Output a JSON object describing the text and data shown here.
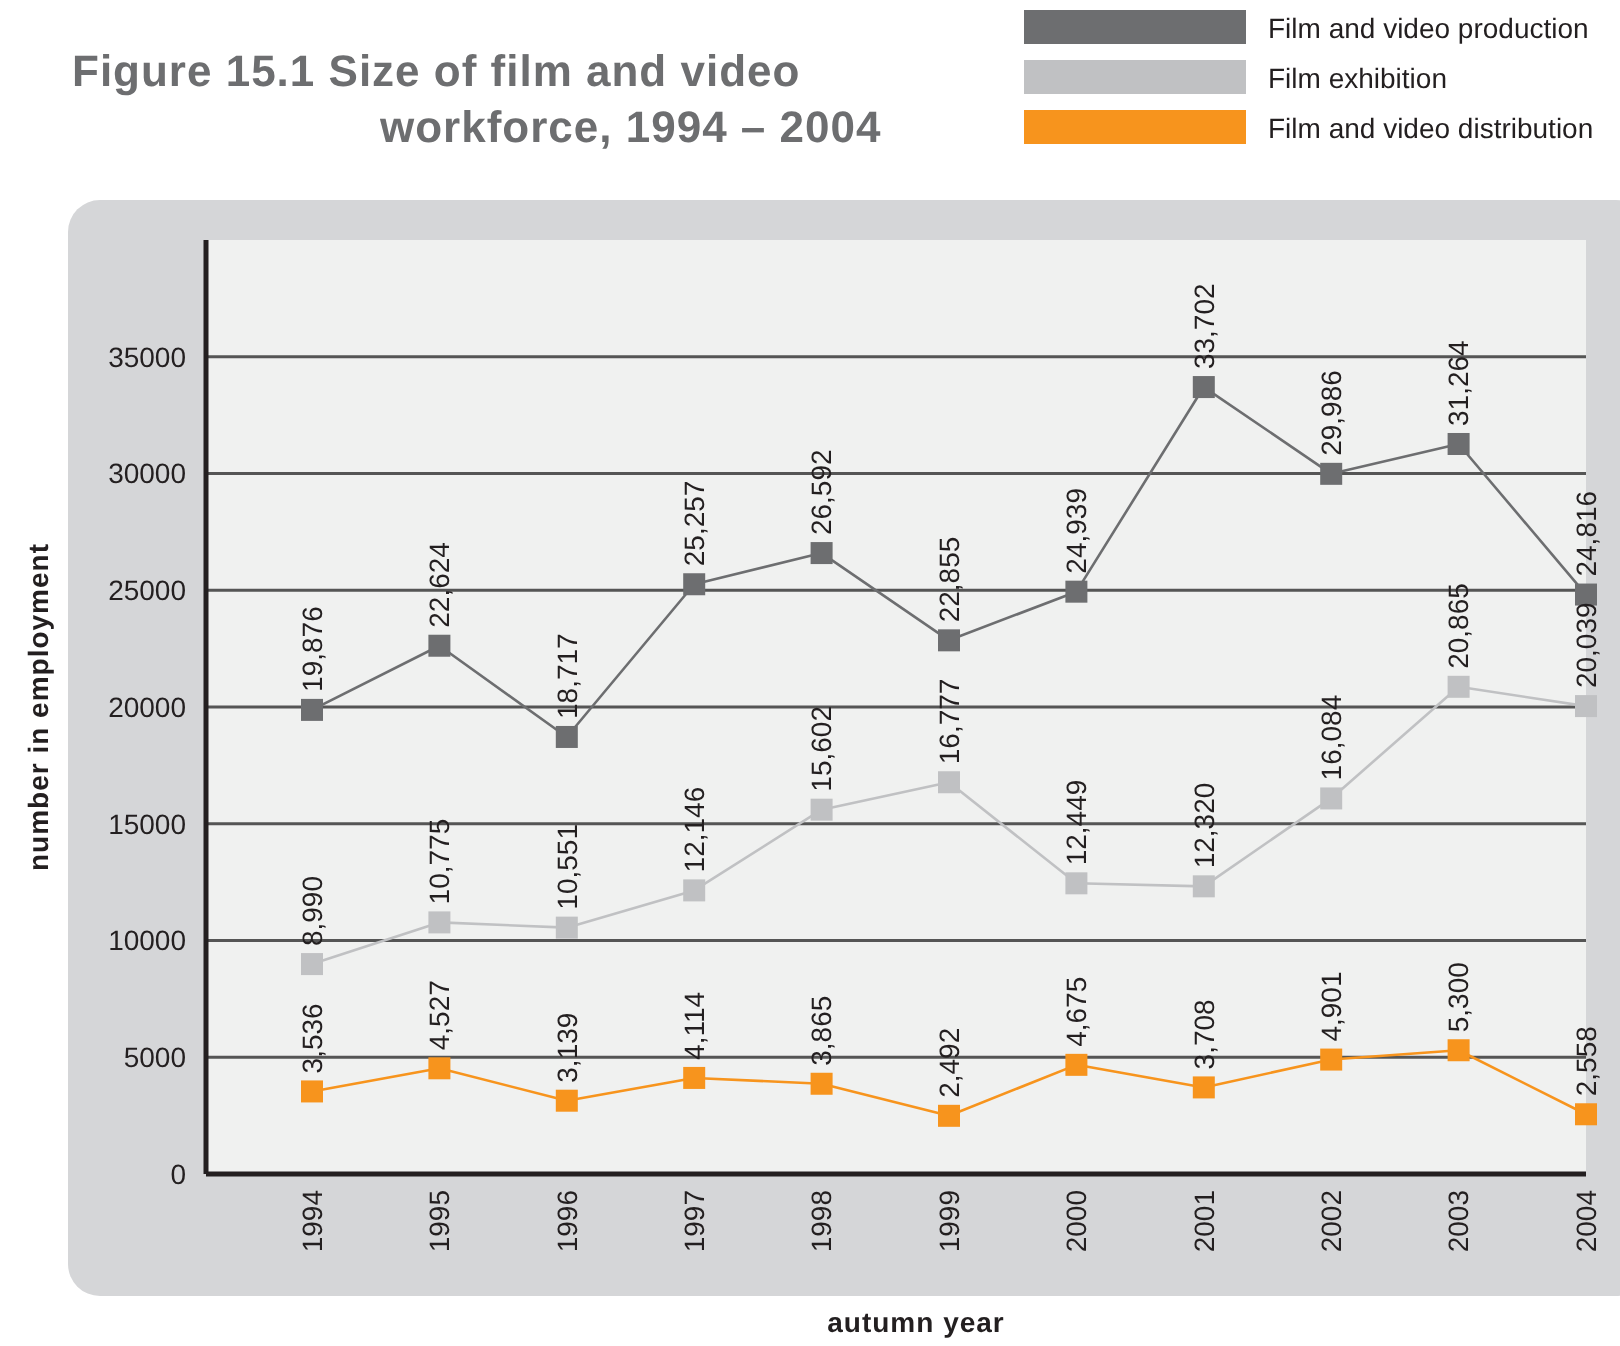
{
  "chart_data": {
    "type": "line",
    "title": "Figure 15.1 Size of film and video workforce, 1994 – 2004",
    "xlabel": "autumn year",
    "ylabel": "number in employment",
    "categories": [
      "1994",
      "1995",
      "1996",
      "1997",
      "1998",
      "1999",
      "2000",
      "2001",
      "2002",
      "2003",
      "2004"
    ],
    "series": [
      {
        "name": "Film and video production",
        "color": "#6d6e70",
        "values": [
          19876,
          22624,
          18717,
          25257,
          26592,
          22855,
          24939,
          33702,
          29986,
          31264,
          24816
        ],
        "value_labels": [
          "19,876",
          "22,624",
          "18,717",
          "25,257",
          "26,592",
          "22,855",
          "24,939",
          "33,702",
          "29,986",
          "31,264",
          "24,816"
        ]
      },
      {
        "name": "Film exhibition",
        "color": "#c0c1c3",
        "values": [
          8990,
          10775,
          10551,
          12146,
          15602,
          16777,
          12449,
          12320,
          16084,
          20865,
          20039
        ],
        "value_labels": [
          "8,990",
          "10,775",
          "10,551",
          "12,146",
          "15,602",
          "16,777",
          "12,449",
          "12,320",
          "16,084",
          "20,865",
          "20,039"
        ]
      },
      {
        "name": "Film and video distribution",
        "color": "#f7941d",
        "values": [
          3536,
          4527,
          3139,
          4114,
          3865,
          2492,
          4675,
          3708,
          4901,
          5300,
          2558
        ],
        "value_labels": [
          "3,536",
          "4,527",
          "3,139",
          "4,114",
          "3,865",
          "2,492",
          "4,675",
          "3,708",
          "4,901",
          "5,300",
          "2,558"
        ]
      }
    ],
    "ylim": [
      0,
      40000
    ],
    "yticks": [
      0,
      5000,
      10000,
      15000,
      20000,
      25000,
      30000,
      35000
    ],
    "grid": "y",
    "legend": "top right",
    "marker": "square",
    "line_style": "solid"
  }
}
